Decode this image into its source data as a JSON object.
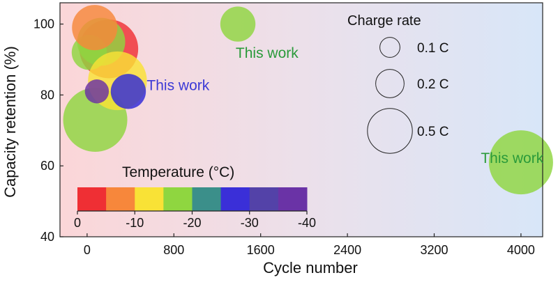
{
  "chart_data": {
    "type": "scatter",
    "title": "",
    "xlabel": "Cycle number",
    "ylabel": "Capacity retention (%)",
    "xlim": [
      -250,
      4200
    ],
    "ylim": [
      40,
      106
    ],
    "xticks": [
      0,
      800,
      1600,
      2400,
      3200,
      4000
    ],
    "xtick_labels": [
      "0",
      "800",
      "1600",
      "2400",
      "3200",
      "4000"
    ],
    "yticks": [
      40,
      60,
      80,
      100
    ],
    "ytick_labels": [
      "40",
      "60",
      "80",
      "100"
    ],
    "size_encoding": "Charge rate (C)",
    "color_encoding": "Temperature (°C)",
    "points": [
      {
        "x": 75,
        "y": 73,
        "rate": 0.5,
        "temp": -20,
        "color": "#8fd640"
      },
      {
        "x": 200,
        "y": 93,
        "rate": 0.42,
        "temp": 0,
        "color": "#ef2f34"
      },
      {
        "x": 130,
        "y": 95,
        "rate": 0.28,
        "temp": -20,
        "color": "#8fd640"
      },
      {
        "x": 20,
        "y": 92,
        "rate": 0.15,
        "temp": -20,
        "color": "#8fd640"
      },
      {
        "x": 70,
        "y": 99,
        "rate": 0.25,
        "temp": -5,
        "color": "#f7873b"
      },
      {
        "x": 280,
        "y": 84,
        "rate": 0.42,
        "temp": -10,
        "color": "#f9e236"
      },
      {
        "x": 380,
        "y": 81,
        "rate": 0.15,
        "temp": -30,
        "color": "#3028d8"
      },
      {
        "x": 90,
        "y": 81,
        "rate": 0.07,
        "temp": -40,
        "color": "#6a2fa5"
      },
      {
        "x": 1390,
        "y": 100,
        "rate": 0.15,
        "temp": -20,
        "color": "#8fd640"
      },
      {
        "x": 4000,
        "y": 61,
        "rate": 0.5,
        "temp": -20,
        "color": "#8fd640"
      }
    ],
    "annotations": [
      {
        "text": "This work",
        "x": 1370,
        "y": 90.5,
        "color": "#2a9a3a"
      },
      {
        "text": "This work",
        "x": 550,
        "y": 81.3,
        "color": "#3d3ad6"
      },
      {
        "text": "This work",
        "x": 3630,
        "y": 60.8,
        "color": "#2a9a3a"
      }
    ],
    "legend_size": {
      "title": "Charge rate",
      "entries": [
        {
          "label": "0.1 C",
          "rate": 0.1
        },
        {
          "label": "0.2 C",
          "rate": 0.2
        },
        {
          "label": "0.5 C",
          "rate": 0.5
        }
      ]
    },
    "legend_color": {
      "title": "Temperature (°C)",
      "colors": [
        "#ef2f34",
        "#f7873b",
        "#f9e236",
        "#8fd640",
        "#3b8f8a",
        "#3a2fd8",
        "#5342a8",
        "#6a33a6"
      ],
      "tick_labels": [
        "0",
        "-10",
        "-20",
        "-30",
        "-40"
      ]
    }
  }
}
